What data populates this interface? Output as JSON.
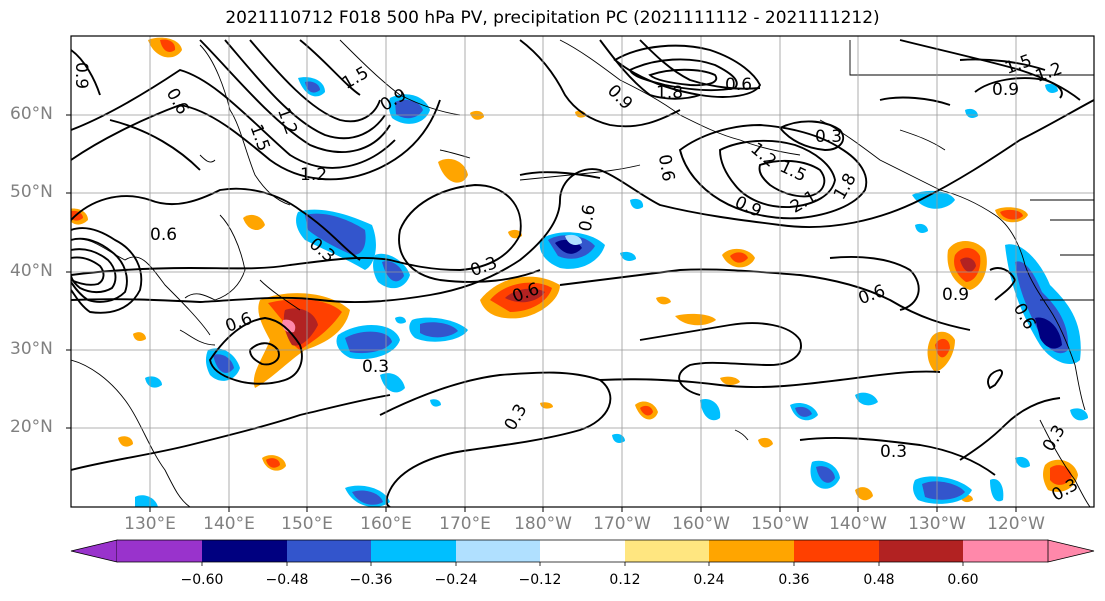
{
  "title": "2021110712 F018 500 hPa PV, precipitation PC (2021111112 - 2021111212)",
  "map": {
    "lat_labels": [
      {
        "text": "60°N",
        "lat": 60
      },
      {
        "text": "50°N",
        "lat": 50
      },
      {
        "text": "40°N",
        "lat": 40
      },
      {
        "text": "30°N",
        "lat": 30
      },
      {
        "text": "20°N",
        "lat": 20
      }
    ],
    "lon_labels": [
      {
        "text": "130°E",
        "lon": 130
      },
      {
        "text": "140°E",
        "lon": 140
      },
      {
        "text": "150°E",
        "lon": 150
      },
      {
        "text": "160°E",
        "lon": 160
      },
      {
        "text": "170°E",
        "lon": 170
      },
      {
        "text": "180°W",
        "lon": 180
      },
      {
        "text": "170°W",
        "lon": 190
      },
      {
        "text": "160°W",
        "lon": 200
      },
      {
        "text": "150°W",
        "lon": 210
      },
      {
        "text": "140°W",
        "lon": 220
      },
      {
        "text": "130°W",
        "lon": 230
      },
      {
        "text": "120°W",
        "lon": 240
      }
    ],
    "contour_labels": [
      "0.9",
      "0.6",
      "1.5",
      "0.9",
      "1.2",
      "1.5",
      "1.2",
      "0.9",
      "1.8",
      "0.6",
      "0.6",
      "0.3",
      "1.2",
      "1.5",
      "1.8",
      "2.1",
      "0.9",
      "1.5",
      "1.2",
      "0.9",
      "0.6",
      "0.6",
      "0.3",
      "0.3",
      "0.6",
      "0.6",
      "0.9",
      "0.6",
      "0.6",
      "0.3",
      "0.3",
      "0.3",
      "0.3",
      "0.3"
    ]
  },
  "colorbar": {
    "ticks": [
      "−0.60",
      "−0.48",
      "−0.36",
      "−0.24",
      "−0.12",
      "0.12",
      "0.24",
      "0.36",
      "0.48",
      "0.60"
    ],
    "colors": [
      "#9933cc",
      "#000080",
      "#3355cc",
      "#00bfff",
      "#b0e0ff",
      "#ffffff",
      "#ffe680",
      "#ffa500",
      "#ff4000",
      "#b22222",
      "#ff88aa"
    ]
  }
}
